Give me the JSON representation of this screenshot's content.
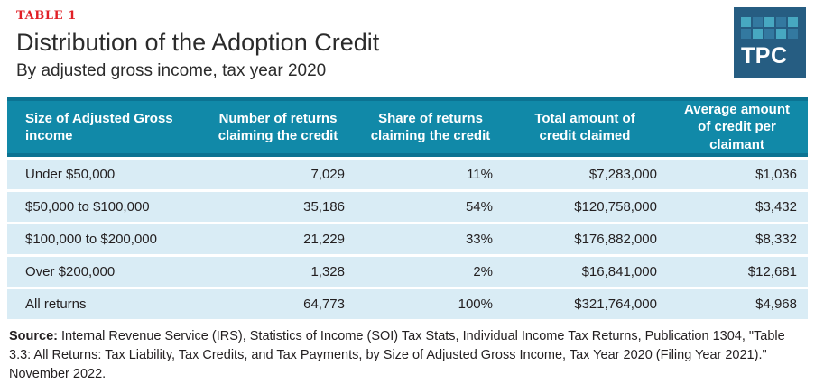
{
  "page": {
    "table_label": "TABLE 1",
    "title": "Distribution of the Adoption Credit",
    "subtitle": "By adjusted gross income, tax year 2020"
  },
  "logo": {
    "text": "TPC"
  },
  "table": {
    "columns": [
      "Size of Adjusted Gross income",
      "Number of returns claiming the credit",
      "Share of returns claiming the credit",
      "Total amount of credit claimed",
      "Average amount of credit per claimant"
    ],
    "rows": [
      {
        "agi": "Under $50,000",
        "returns": "7,029",
        "share": "11%",
        "total": "$7,283,000",
        "average": "$1,036"
      },
      {
        "agi": "$50,000 to $100,000",
        "returns": "35,186",
        "share": "54%",
        "total": "$120,758,000",
        "average": "$3,432"
      },
      {
        "agi": "$100,000 to $200,000",
        "returns": "21,229",
        "share": "33%",
        "total": "$176,882,000",
        "average": "$8,332"
      },
      {
        "agi": "Over $200,000",
        "returns": "1,328",
        "share": "2%",
        "total": "$16,841,000",
        "average": "$12,681"
      },
      {
        "agi": "All returns",
        "returns": "64,773",
        "share": "100%",
        "total": "$321,764,000",
        "average": "$4,968"
      }
    ]
  },
  "source": {
    "label": "Source:",
    "text": " Internal Revenue Service (IRS), Statistics of Income (SOI) Tax Stats, Individual Income Tax Returns, Publication 1304, \"Table 3.3: All Returns: Tax Liability, Tax Credits, and Tax Payments, by Size of Adjusted Gross Income, Tax Year 2020 (Filing Year 2021).\" November 2022."
  },
  "colors": {
    "header_teal": "#1189A8",
    "header_rule": "#0C7392",
    "row_light_blue": "#D9ECF5",
    "label_red": "#E11F26",
    "logo_navy": "#265D82",
    "logo_square_teal": "#47A8C1",
    "logo_square_blue": "#3379A0",
    "text_dark": "#231F20"
  },
  "chart_data": {
    "type": "table",
    "title": "Distribution of the Adoption Credit",
    "subtitle": "By adjusted gross income, tax year 2020",
    "columns": [
      "Size of Adjusted Gross income",
      "Number of returns claiming the credit",
      "Share of returns claiming the credit",
      "Total amount of credit claimed",
      "Average amount of credit per claimant"
    ],
    "rows": [
      {
        "agi_bracket": "Under $50,000",
        "returns": 7029,
        "share_pct": 11,
        "total_credit_usd": 7283000,
        "avg_credit_usd": 1036
      },
      {
        "agi_bracket": "$50,000 to $100,000",
        "returns": 35186,
        "share_pct": 54,
        "total_credit_usd": 120758000,
        "avg_credit_usd": 3432
      },
      {
        "agi_bracket": "$100,000 to $200,000",
        "returns": 21229,
        "share_pct": 33,
        "total_credit_usd": 176882000,
        "avg_credit_usd": 8332
      },
      {
        "agi_bracket": "Over $200,000",
        "returns": 1328,
        "share_pct": 2,
        "total_credit_usd": 16841000,
        "avg_credit_usd": 12681
      },
      {
        "agi_bracket": "All returns",
        "returns": 64773,
        "share_pct": 100,
        "total_credit_usd": 321764000,
        "avg_credit_usd": 4968
      }
    ]
  }
}
